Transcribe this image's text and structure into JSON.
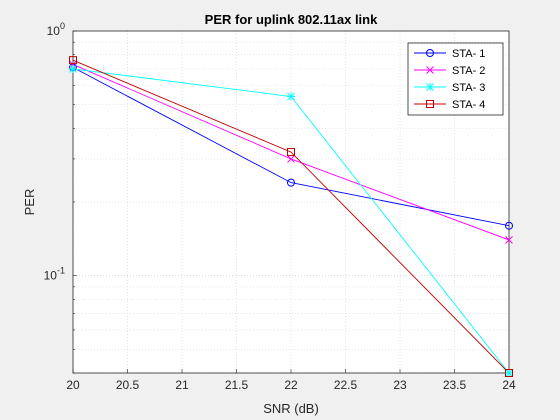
{
  "chart_data": {
    "type": "line",
    "title": "PER for uplink 802.11ax link",
    "xlabel": "SNR (dB)",
    "ylabel": "PER",
    "xlim": [
      20,
      24
    ],
    "ylim": [
      0.04,
      1
    ],
    "yscale": "log",
    "grid": true,
    "legend_position": "top-right",
    "x": [
      20,
      22,
      24
    ],
    "x_tick_labels": [
      "20",
      "20.5",
      "21",
      "21.5",
      "22",
      "22.5",
      "23",
      "23.5",
      "24"
    ],
    "y_tick_labels": [
      {
        "value": 1,
        "base": "10",
        "exp": "0"
      },
      {
        "value": 0.1,
        "base": "10",
        "exp": "-1"
      }
    ],
    "series": [
      {
        "name": "STA- 1",
        "values": [
          0.71,
          0.24,
          0.16
        ],
        "color": "#0000ff",
        "marker": "circle"
      },
      {
        "name": "STA- 2",
        "values": [
          0.73,
          0.3,
          0.14
        ],
        "color": "#ff00ff",
        "marker": "x"
      },
      {
        "name": "STA- 3",
        "values": [
          0.7,
          0.54,
          0.04
        ],
        "color": "#00ffff",
        "marker": "star"
      },
      {
        "name": "STA- 4",
        "values": [
          0.76,
          0.32,
          0.04
        ],
        "color": "#c00000",
        "marker": "square"
      }
    ]
  }
}
